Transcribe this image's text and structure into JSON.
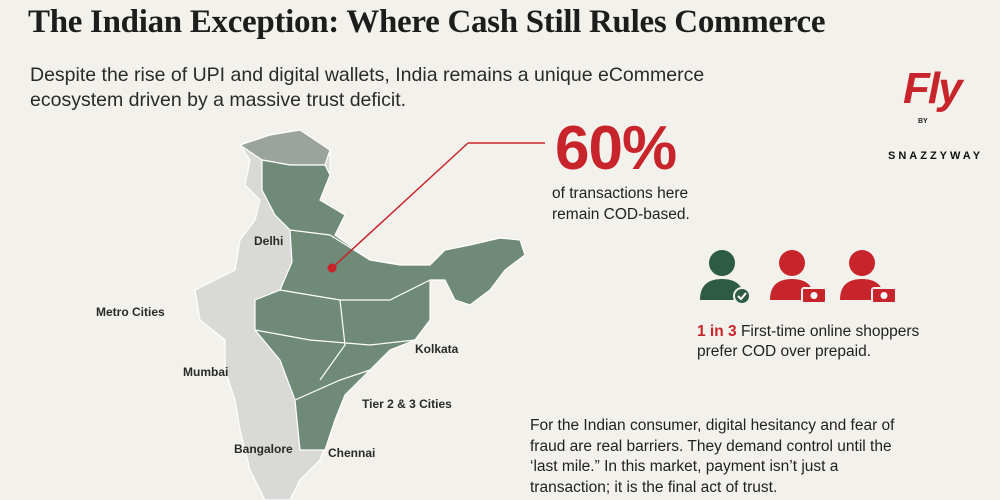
{
  "header": {
    "title": "The Indian Exception: Where Cash Still Rules Commerce",
    "subtitle": [
      "Despite the rise of UPI and digital wallets, India remains a unique eCommerce",
      "ecosystem driven by a massive trust deficit."
    ]
  },
  "stat": {
    "value": "60%",
    "text": [
      "of transactions here",
      "remain COD-based."
    ]
  },
  "map": {
    "labels": [
      "Delhi",
      "Metro Cities",
      "Mumbai",
      "Kolkata",
      "Tier 2 & 3 Cities",
      "Bangalore",
      "Chennai"
    ]
  },
  "shoppers": {
    "highlight": "1 in 3",
    "text": [
      "First-time online shoppers",
      "prefer COD over prepaid."
    ]
  },
  "paragraph": [
    "For the Indian consumer, digital hesitancy and fear of",
    "fraud are real barriers. They demand control until the",
    "‘last mile.” In this market, payment isn’t just a",
    "transaction; it is the final act of trust."
  ],
  "logo": {
    "brand": "Fly",
    "by": "BY",
    "name": "SNAZZYWAY"
  }
}
